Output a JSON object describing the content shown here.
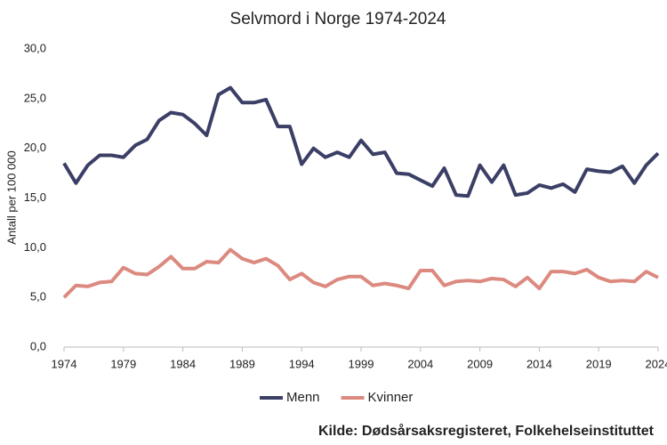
{
  "chart_data": {
    "type": "line",
    "title": "Selvmord i Norge 1974-2024",
    "y_label": "Antall per 100 000",
    "source": "Kilde: Dødsårsaksregisteret, Folkehelseinstituttet",
    "x": [
      1974,
      1975,
      1976,
      1977,
      1978,
      1979,
      1980,
      1981,
      1982,
      1983,
      1984,
      1985,
      1986,
      1987,
      1988,
      1989,
      1990,
      1991,
      1992,
      1993,
      1994,
      1995,
      1996,
      1997,
      1998,
      1999,
      2000,
      2001,
      2002,
      2003,
      2004,
      2005,
      2006,
      2007,
      2008,
      2009,
      2010,
      2011,
      2012,
      2013,
      2014,
      2015,
      2016,
      2017,
      2018,
      2019,
      2020,
      2021,
      2022,
      2023,
      2024
    ],
    "series": [
      {
        "name": "Menn",
        "color": "#3b3f66",
        "values": [
          18.5,
          16.5,
          18.3,
          19.3,
          19.3,
          19.1,
          20.3,
          20.9,
          22.8,
          23.6,
          23.4,
          22.5,
          21.3,
          25.4,
          26.1,
          24.6,
          24.6,
          24.9,
          22.2,
          22.2,
          18.4,
          20.0,
          19.1,
          19.6,
          19.1,
          20.8,
          19.4,
          19.6,
          17.5,
          17.4,
          16.8,
          16.2,
          18.0,
          15.3,
          15.2,
          18.3,
          16.6,
          18.3,
          15.3,
          15.5,
          16.3,
          16.0,
          16.4,
          15.6,
          17.9,
          17.7,
          17.6,
          18.2,
          16.5,
          18.3,
          19.5
        ]
      },
      {
        "name": "Kvinner",
        "color": "#dc8a80",
        "values": [
          5.0,
          6.2,
          6.1,
          6.5,
          6.6,
          8.0,
          7.4,
          7.3,
          8.1,
          9.1,
          7.9,
          7.9,
          8.6,
          8.5,
          9.8,
          8.9,
          8.5,
          8.9,
          8.2,
          6.8,
          7.4,
          6.5,
          6.1,
          6.8,
          7.1,
          7.1,
          6.2,
          6.4,
          6.2,
          5.9,
          7.7,
          7.7,
          6.2,
          6.6,
          6.7,
          6.6,
          6.9,
          6.8,
          6.1,
          7.0,
          5.9,
          7.6,
          7.6,
          7.4,
          7.8,
          7.0,
          6.6,
          6.7,
          6.6,
          7.6,
          7.0
        ]
      }
    ],
    "xlim": [
      1974,
      2024
    ],
    "xticks": [
      1974,
      1979,
      1984,
      1989,
      1994,
      1999,
      2004,
      2009,
      2014,
      2019,
      2024
    ],
    "ylim": [
      0,
      30
    ],
    "yticks": [
      {
        "value": 0,
        "label": "0,0"
      },
      {
        "value": 5,
        "label": "5,0"
      },
      {
        "value": 10,
        "label": "10,0"
      },
      {
        "value": 15,
        "label": "15,0"
      },
      {
        "value": 20,
        "label": "20,0"
      },
      {
        "value": 25,
        "label": "25,0"
      },
      {
        "value": 30,
        "label": "30,0"
      }
    ],
    "grid": false
  }
}
